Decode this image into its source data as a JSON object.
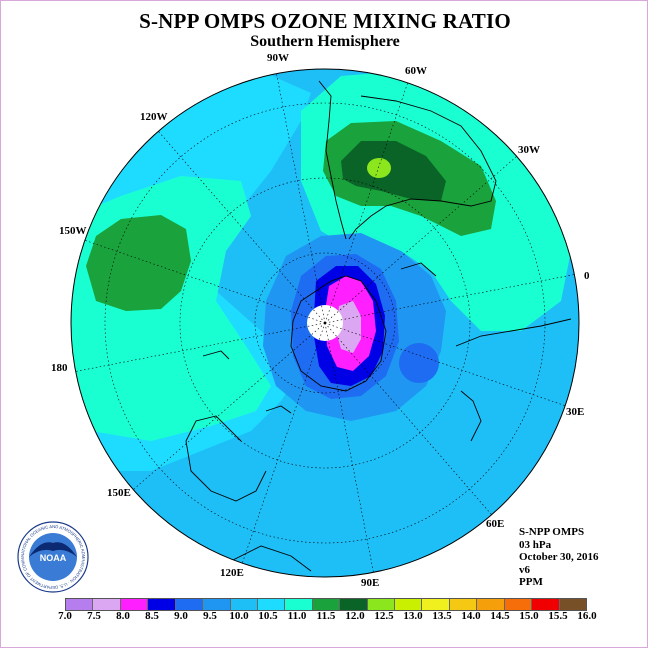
{
  "title": "S-NPP OMPS OZONE MIXING RATIO",
  "subtitle": "Southern Hemisphere",
  "longitude_labels": [
    "90W",
    "60W",
    "30W",
    "0",
    "30E",
    "60E",
    "90E",
    "120E",
    "150E",
    "180",
    "150W",
    "120W"
  ],
  "info": {
    "instrument": "S-NPP OMPS",
    "level": "03 hPa",
    "date": "October 30, 2016",
    "version": "v6",
    "units": "PPM"
  },
  "colorbar": {
    "ticks": [
      "7.0",
      "7.5",
      "8.0",
      "8.5",
      "9.0",
      "9.5",
      "10.0",
      "10.5",
      "11.0",
      "11.5",
      "12.0",
      "12.5",
      "13.0",
      "13.5",
      "14.0",
      "14.5",
      "15.0",
      "15.5",
      "16.0"
    ],
    "colors": [
      "#b57ded",
      "#dca7f2",
      "#ff1fff",
      "#0000e6",
      "#1e6cf2",
      "#1e96f2",
      "#1ebef7",
      "#1edcff",
      "#1affd2",
      "#1aa23c",
      "#0a6428",
      "#8ce61e",
      "#c8f000",
      "#f0f01e",
      "#f5c814",
      "#f5a00a",
      "#f56e0a",
      "#f00000",
      "#785028"
    ]
  },
  "logo": {
    "text": "NOAA",
    "ring_text": "NATIONAL OCEANIC AND ATMOSPHERIC ADMINISTRATION · U.S. DEPARTMENT OF COMMERCE"
  },
  "colors": {
    "background_field": "#1ebef7",
    "frame": "#d9a8d9"
  }
}
